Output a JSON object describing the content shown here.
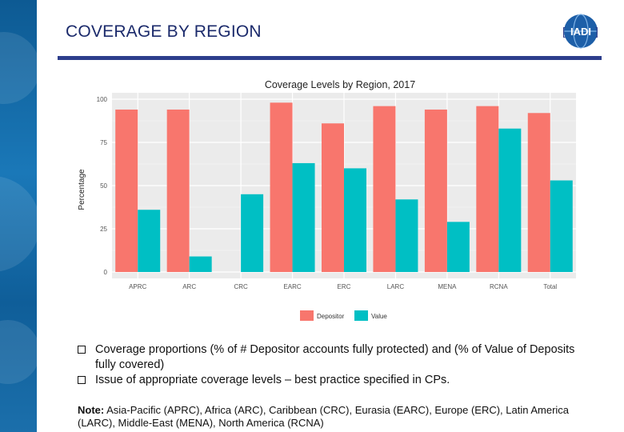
{
  "slide": {
    "title": "COVERAGE BY REGION",
    "logo_text": "IADI",
    "bullets": [
      "Coverage proportions (% of # Depositor accounts fully protected) and (% of Value of Deposits fully covered)",
      "Issue of appropriate coverage levels – best practice specified in CPs."
    ],
    "note_label": "Note:",
    "note_text": " Asia-Pacific (APRC), Africa (ARC), Caribbean (CRC), Eurasia (EARC), Europe (ERC), Latin America (LARC), Middle-East (MENA), North America (RCNA)"
  },
  "colors": {
    "title": "#1b2a6b",
    "depositor": "#f8766d",
    "value": "#00bfc4",
    "panel": "#ebebeb"
  },
  "chart_data": {
    "type": "bar",
    "title": "Coverage Levels by Region, 2017",
    "xlabel": "",
    "ylabel": "Percentage",
    "ylim": [
      0,
      100
    ],
    "yticks": [
      0,
      25,
      50,
      75,
      100
    ],
    "categories": [
      "APRC",
      "ARC",
      "CRC",
      "EARC",
      "ERC",
      "LARC",
      "MENA",
      "RCNA",
      "Total"
    ],
    "series": [
      {
        "name": "Depositor",
        "values": [
          94,
          94,
          0,
          98,
          86,
          96,
          94,
          96,
          92
        ]
      },
      {
        "name": "Value",
        "values": [
          36,
          9,
          45,
          63,
          60,
          42,
          29,
          83,
          53
        ]
      }
    ],
    "legend": "bottom",
    "grid": true
  }
}
